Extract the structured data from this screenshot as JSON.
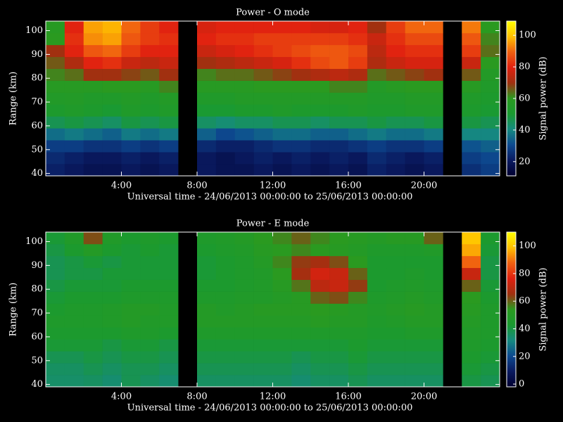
{
  "chart_data": [
    {
      "type": "heatmap",
      "title": "Power - O mode",
      "xlabel": "Universal time - 24/06/2013 00:00:00 to 25/06/2013 00:00:00",
      "ylabel": "Range (km)",
      "colorbar_label": "Signal power (dB)",
      "x": [
        0,
        1,
        2,
        3,
        4,
        5,
        6,
        7,
        8,
        9,
        10,
        11,
        12,
        13,
        14,
        15,
        16,
        17,
        18,
        19,
        20,
        21,
        22,
        23,
        24
      ],
      "y": [
        39,
        44,
        49,
        54,
        59,
        64,
        69,
        74,
        79,
        84,
        89,
        94,
        99,
        104
      ],
      "xlim": [
        0,
        24
      ],
      "ylim": [
        39,
        104
      ],
      "xticks": [
        {
          "value": 4,
          "label": "4:00"
        },
        {
          "value": 8,
          "label": "8:00"
        },
        {
          "value": 12,
          "label": "12:00"
        },
        {
          "value": 16,
          "label": "16:00"
        },
        {
          "value": 20,
          "label": "20:00"
        }
      ],
      "yticks": [
        40,
        50,
        60,
        70,
        80,
        90,
        100
      ],
      "clim": [
        11,
        109
      ],
      "cticks": [
        20,
        40,
        60,
        80,
        100
      ],
      "colorscale": [
        "#000030",
        "#0a1a60",
        "#0d4a90",
        "#158a80",
        "#1a9a30",
        "#2a9a20",
        "#a03010",
        "#e02010",
        "#f06010",
        "#ffc000",
        "#ffff00"
      ],
      "values": [
        [
          22,
          20,
          18,
          18,
          20,
          18,
          20,
          null,
          20,
          18,
          18,
          20,
          18,
          20,
          18,
          20,
          18,
          22,
          20,
          18,
          20,
          null,
          25,
          28
        ],
        [
          24,
          22,
          20,
          20,
          22,
          20,
          22,
          null,
          20,
          18,
          20,
          22,
          20,
          22,
          20,
          22,
          20,
          24,
          22,
          20,
          22,
          null,
          28,
          30
        ],
        [
          28,
          28,
          26,
          26,
          28,
          26,
          28,
          null,
          24,
          22,
          22,
          24,
          26,
          26,
          24,
          24,
          26,
          28,
          26,
          26,
          28,
          null,
          32,
          34
        ],
        [
          36,
          38,
          36,
          34,
          38,
          36,
          38,
          null,
          34,
          30,
          32,
          34,
          36,
          36,
          34,
          34,
          36,
          38,
          36,
          36,
          38,
          null,
          40,
          40
        ],
        [
          46,
          48,
          46,
          44,
          48,
          46,
          48,
          null,
          44,
          42,
          44,
          44,
          46,
          46,
          44,
          46,
          46,
          48,
          46,
          46,
          48,
          null,
          48,
          46
        ],
        [
          52,
          54,
          52,
          50,
          54,
          52,
          54,
          null,
          50,
          50,
          52,
          52,
          54,
          52,
          52,
          52,
          54,
          52,
          52,
          54,
          54,
          null,
          52,
          50
        ],
        [
          55,
          56,
          54,
          54,
          56,
          54,
          56,
          null,
          54,
          54,
          56,
          56,
          56,
          56,
          56,
          56,
          56,
          54,
          54,
          56,
          56,
          null,
          54,
          52
        ],
        [
          58,
          58,
          58,
          60,
          60,
          58,
          62,
          null,
          58,
          58,
          58,
          60,
          60,
          60,
          60,
          62,
          62,
          56,
          58,
          60,
          60,
          null,
          58,
          54
        ],
        [
          62,
          64,
          70,
          70,
          68,
          66,
          70,
          null,
          62,
          64,
          64,
          66,
          68,
          70,
          72,
          74,
          72,
          64,
          66,
          68,
          70,
          null,
          66,
          56
        ],
        [
          66,
          72,
          80,
          82,
          76,
          74,
          76,
          null,
          70,
          72,
          74,
          76,
          78,
          82,
          86,
          88,
          84,
          72,
          76,
          78,
          78,
          null,
          76,
          60
        ],
        [
          70,
          80,
          88,
          90,
          84,
          80,
          80,
          null,
          76,
          78,
          80,
          82,
          84,
          86,
          88,
          88,
          86,
          74,
          80,
          82,
          82,
          null,
          84,
          64
        ],
        [
          60,
          82,
          94,
          96,
          88,
          84,
          82,
          null,
          80,
          82,
          82,
          84,
          84,
          84,
          84,
          84,
          82,
          76,
          82,
          86,
          86,
          null,
          88,
          62
        ],
        [
          58,
          80,
          96,
          98,
          90,
          84,
          80,
          null,
          78,
          80,
          80,
          80,
          80,
          80,
          78,
          78,
          80,
          70,
          84,
          90,
          90,
          null,
          92,
          60
        ]
      ]
    },
    {
      "type": "heatmap",
      "title": "Power - E mode",
      "xlabel": "Universal time - 24/06/2013 00:00:00 to 25/06/2013 00:00:00",
      "ylabel": "Range (km)",
      "colorbar_label": "Signal power (dB)",
      "x": [
        0,
        1,
        2,
        3,
        4,
        5,
        6,
        7,
        8,
        9,
        10,
        11,
        12,
        13,
        14,
        15,
        16,
        17,
        18,
        19,
        20,
        21,
        22,
        23,
        24
      ],
      "y": [
        39,
        44,
        49,
        54,
        59,
        64,
        69,
        74,
        79,
        84,
        89,
        94,
        99,
        104
      ],
      "xlim": [
        0,
        24
      ],
      "ylim": [
        39,
        104
      ],
      "xticks": [
        {
          "value": 4,
          "label": "4:00"
        },
        {
          "value": 8,
          "label": "8:00"
        },
        {
          "value": 12,
          "label": "12:00"
        },
        {
          "value": 16,
          "label": "16:00"
        },
        {
          "value": 20,
          "label": "20:00"
        }
      ],
      "yticks": [
        40,
        50,
        60,
        70,
        80,
        90,
        100
      ],
      "clim": [
        -2,
        110
      ],
      "cticks": [
        0,
        20,
        40,
        60,
        80,
        100
      ],
      "colorscale": [
        "#000030",
        "#0a1a60",
        "#0d4a90",
        "#158a80",
        "#1a9a30",
        "#2a9a20",
        "#a03010",
        "#e02010",
        "#f06010",
        "#ffc000",
        "#ffff00"
      ],
      "values": [
        [
          35,
          35,
          36,
          34,
          38,
          36,
          34,
          null,
          36,
          36,
          36,
          36,
          36,
          34,
          36,
          36,
          38,
          36,
          36,
          36,
          36,
          null,
          40,
          38
        ],
        [
          36,
          36,
          38,
          36,
          38,
          38,
          36,
          null,
          38,
          38,
          38,
          38,
          38,
          36,
          38,
          38,
          40,
          38,
          38,
          38,
          38,
          null,
          42,
          40
        ],
        [
          38,
          38,
          40,
          38,
          40,
          40,
          38,
          null,
          40,
          40,
          40,
          40,
          40,
          38,
          40,
          40,
          42,
          40,
          40,
          40,
          40,
          null,
          44,
          42
        ],
        [
          42,
          42,
          42,
          40,
          42,
          42,
          40,
          null,
          42,
          42,
          42,
          42,
          42,
          42,
          42,
          42,
          44,
          42,
          42,
          42,
          42,
          null,
          46,
          44
        ],
        [
          44,
          44,
          44,
          44,
          46,
          46,
          44,
          null,
          46,
          46,
          46,
          46,
          46,
          46,
          46,
          46,
          46,
          44,
          44,
          46,
          46,
          null,
          48,
          46
        ],
        [
          46,
          46,
          46,
          48,
          50,
          48,
          48,
          null,
          50,
          50,
          50,
          50,
          50,
          50,
          52,
          50,
          50,
          46,
          48,
          50,
          50,
          null,
          50,
          46
        ],
        [
          44,
          46,
          46,
          48,
          50,
          50,
          48,
          null,
          50,
          48,
          50,
          52,
          52,
          52,
          54,
          52,
          50,
          48,
          50,
          52,
          50,
          null,
          52,
          46
        ],
        [
          42,
          44,
          44,
          44,
          46,
          46,
          46,
          null,
          46,
          46,
          48,
          48,
          50,
          52,
          60,
          62,
          56,
          46,
          48,
          50,
          48,
          null,
          54,
          44
        ],
        [
          40,
          42,
          42,
          42,
          44,
          44,
          44,
          null,
          44,
          44,
          46,
          48,
          52,
          58,
          70,
          72,
          64,
          44,
          46,
          48,
          46,
          null,
          60,
          42
        ],
        [
          38,
          40,
          40,
          42,
          42,
          42,
          42,
          null,
          42,
          44,
          46,
          48,
          54,
          66,
          74,
          72,
          60,
          44,
          44,
          46,
          44,
          null,
          72,
          40
        ],
        [
          38,
          40,
          42,
          40,
          42,
          42,
          42,
          null,
          42,
          44,
          46,
          50,
          56,
          64,
          66,
          62,
          54,
          44,
          44,
          44,
          44,
          null,
          88,
          40
        ],
        [
          40,
          44,
          50,
          44,
          42,
          44,
          42,
          null,
          44,
          46,
          48,
          52,
          54,
          56,
          54,
          52,
          50,
          46,
          46,
          46,
          48,
          null,
          96,
          42
        ],
        [
          42,
          48,
          62,
          48,
          44,
          46,
          44,
          null,
          46,
          48,
          50,
          54,
          56,
          60,
          56,
          54,
          52,
          50,
          52,
          52,
          60,
          null,
          100,
          44
        ]
      ]
    }
  ]
}
